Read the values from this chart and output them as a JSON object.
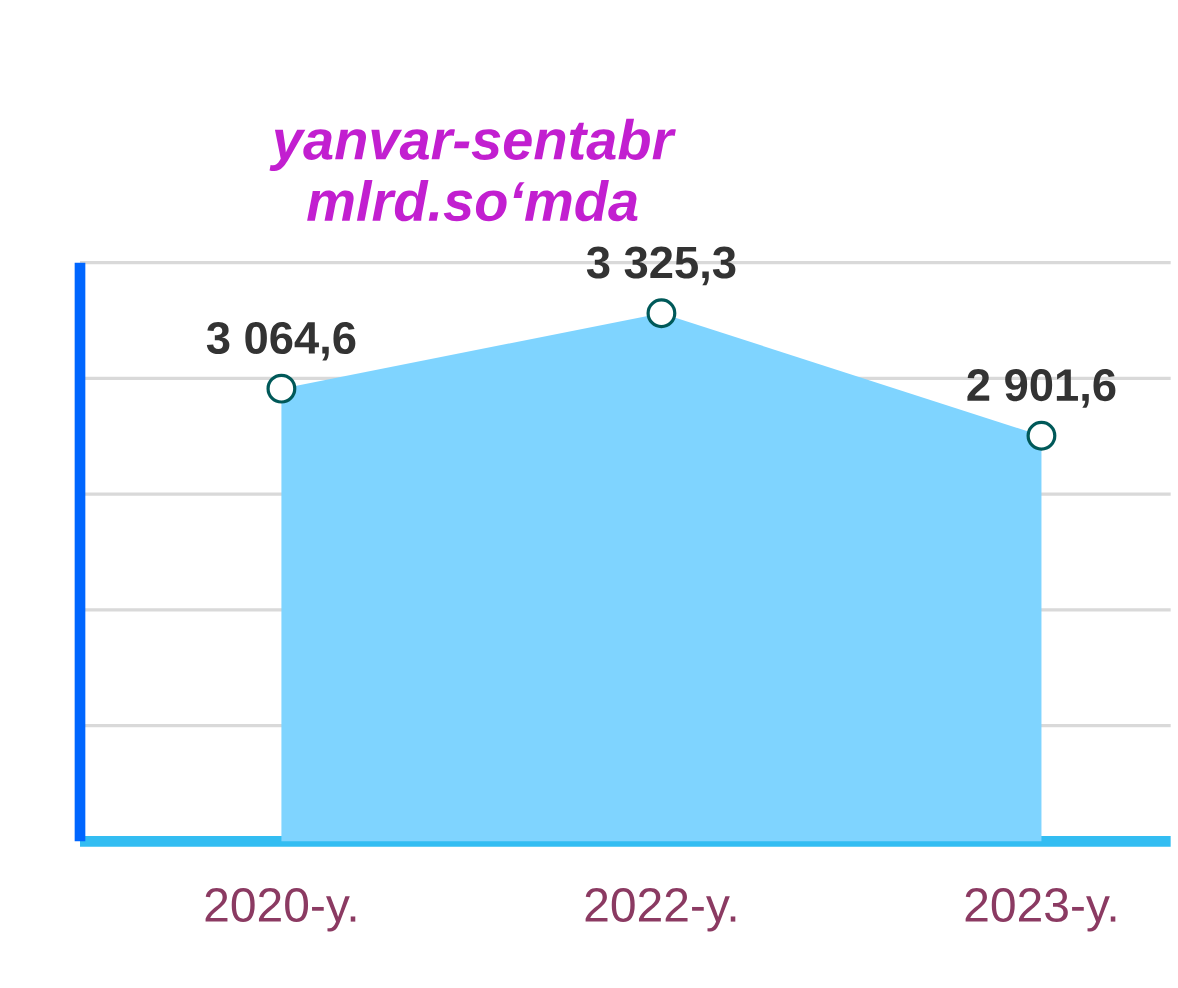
{
  "chart_data": {
    "type": "area",
    "title": "yanvar-sentabr",
    "subtitle": "mlrd.so‘mda",
    "categories": [
      "2020-y.",
      "2022-y.",
      "2023-y."
    ],
    "series": [
      {
        "color": "#7fd4ff",
        "values": [
          3064.6,
          3325.3,
          2901.6
        ],
        "value_labels": [
          "3 064,6",
          "3 325,3",
          "2 901,6"
        ]
      }
    ],
    "ylim": [
      1500,
      3500
    ],
    "yticks": [
      {
        "value": 1900,
        "label": null
      },
      {
        "value": 2300,
        "label": null
      },
      {
        "value": 2700,
        "label": null
      },
      {
        "value": 3100,
        "label": null
      },
      {
        "value": 3500,
        "label": null
      }
    ],
    "grid": "y",
    "tick_labels": "x",
    "marker": "circle"
  }
}
